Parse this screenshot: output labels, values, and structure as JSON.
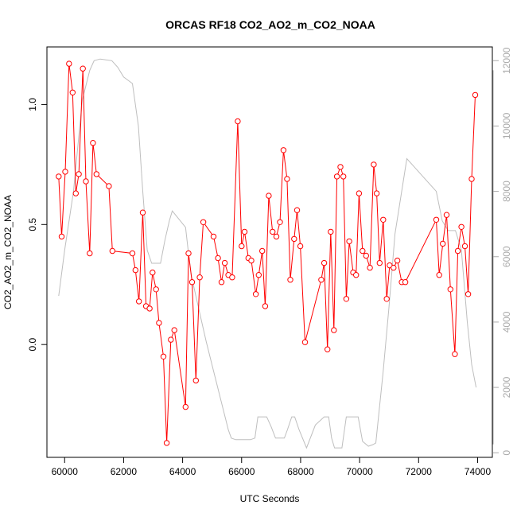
{
  "chart_data": {
    "type": "line",
    "title": "ORCAS RF18 CO2_AO2_m_CO2_NOAA",
    "xlabel": "UTC Seconds",
    "ylabel": "CO2_AO2_m_CO2_NOAA",
    "xlim": [
      59400,
      74500
    ],
    "ylim": [
      -0.47,
      1.24
    ],
    "y2lim": [
      -140,
      12420
    ],
    "x_ticks": [
      60000,
      62000,
      64000,
      66000,
      68000,
      70000,
      72000,
      74000
    ],
    "x_tick_labels": [
      "60000",
      "62000",
      "64000",
      "66000",
      "68000",
      "70000",
      "72000",
      "74000"
    ],
    "y_ticks": [
      0.0,
      0.5,
      1.0
    ],
    "y_tick_labels": [
      "0.0",
      "0.5",
      "1.0"
    ],
    "y2_ticks": [
      0,
      2000,
      4000,
      6000,
      8000,
      10000,
      12000
    ],
    "y2_tick_labels": [
      "0",
      "2000",
      "4000",
      "6000",
      "8000",
      "10000",
      "12000"
    ],
    "colors": {
      "series": "#ff0000",
      "secondary": "#bebebe"
    },
    "series": [
      {
        "axis": "left",
        "marker": "open-circle",
        "x": [
          59800,
          59900,
          60020,
          60150,
          60270,
          60380,
          60480,
          60620,
          60720,
          60850,
          60960,
          61080,
          61500,
          61620,
          62300,
          62400,
          62520,
          62650,
          62760,
          62880,
          62980,
          63100,
          63200,
          63350,
          63460,
          63600,
          63720,
          64100,
          64200,
          64320,
          64450,
          64580,
          64700,
          65050,
          65200,
          65320,
          65430,
          65550,
          65680,
          65870,
          66000,
          66100,
          66230,
          66330,
          66480,
          66580,
          66700,
          66800,
          66920,
          67050,
          67180,
          67300,
          67420,
          67540,
          67650,
          67780,
          67880,
          67990,
          68150,
          68700,
          68800,
          68910,
          69020,
          69130,
          69230,
          69350,
          69450,
          69550,
          69650,
          69780,
          69880,
          69980,
          70100,
          70220,
          70350,
          70480,
          70580,
          70680,
          70800,
          70920,
          71020,
          71150,
          71280,
          71430,
          71550,
          72600,
          72700,
          72820,
          72950,
          73080,
          73230,
          73330,
          73450,
          73570,
          73680,
          73800,
          73920
        ],
        "y": [
          0.7,
          0.45,
          0.72,
          1.17,
          1.05,
          0.63,
          0.71,
          1.15,
          0.68,
          0.38,
          0.84,
          0.71,
          0.66,
          0.39,
          0.38,
          0.31,
          0.18,
          0.55,
          0.16,
          0.15,
          0.3,
          0.23,
          0.09,
          -0.05,
          -0.41,
          0.02,
          0.06,
          -0.26,
          0.38,
          0.26,
          -0.15,
          0.28,
          0.51,
          0.45,
          0.36,
          0.26,
          0.34,
          0.29,
          0.28,
          0.93,
          0.41,
          0.47,
          0.36,
          0.35,
          0.21,
          0.29,
          0.39,
          0.16,
          0.62,
          0.47,
          0.45,
          0.51,
          0.81,
          0.69,
          0.27,
          0.44,
          0.56,
          0.41,
          0.01,
          0.27,
          0.34,
          -0.02,
          0.47,
          0.06,
          0.7,
          0.74,
          0.7,
          0.19,
          0.43,
          0.3,
          0.29,
          0.63,
          0.39,
          0.37,
          0.32,
          0.75,
          0.63,
          0.34,
          0.52,
          0.19,
          0.33,
          0.32,
          0.35,
          0.26,
          0.26,
          0.52,
          0.29,
          0.42,
          0.54,
          0.23,
          -0.04,
          0.39,
          0.49,
          0.41,
          0.21,
          0.69,
          1.04
        ]
      },
      {
        "axis": "right",
        "marker": "none",
        "x": [
          59800,
          60000,
          60300,
          60600,
          60850,
          61000,
          61200,
          61600,
          61800,
          62000,
          62300,
          62500,
          62650,
          62800,
          62950,
          63050,
          63250,
          63400,
          63550,
          63650,
          64100,
          64200,
          64300,
          64600,
          64800,
          65050,
          65300,
          65550,
          65650,
          65800,
          66300,
          66450,
          66550,
          66650,
          66850,
          67000,
          67150,
          67300,
          67450,
          67550,
          67700,
          67800,
          67950,
          68200,
          68500,
          68800,
          68950,
          69050,
          69150,
          69300,
          69400,
          69550,
          69800,
          69950,
          70100,
          70300,
          70450,
          70550,
          70800,
          71000,
          71200,
          71600,
          71800,
          72200,
          72600,
          72800,
          73000,
          73250,
          73450,
          73650,
          73800,
          73950
        ],
        "y": [
          4800,
          6200,
          8000,
          10800,
          11700,
          12000,
          12050,
          12000,
          11800,
          11500,
          11300,
          10000,
          8000,
          6200,
          5800,
          5800,
          5800,
          6500,
          7100,
          7400,
          6900,
          6100,
          5400,
          4200,
          3400,
          2500,
          1600,
          700,
          450,
          400,
          400,
          450,
          1100,
          1100,
          1100,
          800,
          450,
          450,
          450,
          700,
          1100,
          1100,
          700,
          150,
          850,
          1100,
          1100,
          450,
          150,
          150,
          150,
          1100,
          1100,
          1100,
          350,
          200,
          250,
          300,
          2500,
          4500,
          6700,
          9000,
          8800,
          8400,
          8000,
          7100,
          6800,
          6800,
          6200,
          4000,
          2700,
          2000
        ]
      }
    ]
  }
}
